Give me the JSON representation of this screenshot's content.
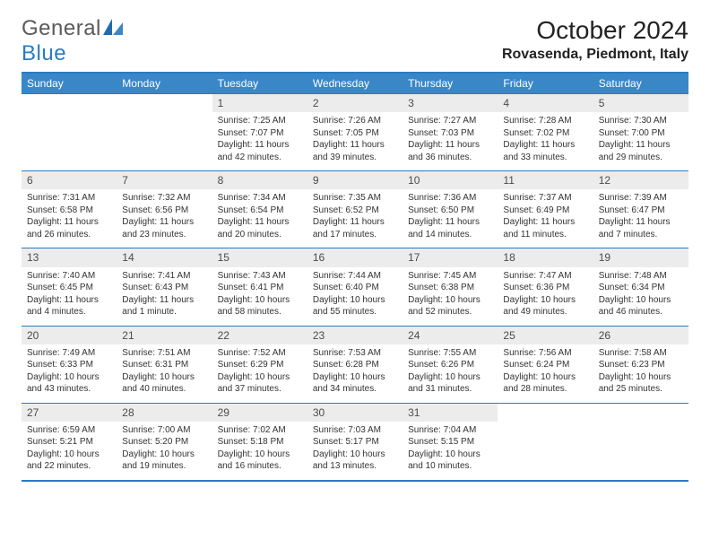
{
  "brand": {
    "word1": "General",
    "word2": "Blue"
  },
  "title": "October 2024",
  "location": "Rovasenda, Piedmont, Italy",
  "colors": {
    "header_bg": "#3a87c8",
    "header_text": "#ffffff",
    "border": "#2a7cc4",
    "daynum_bg": "#ececec",
    "body_text": "#333333",
    "logo_gray": "#5a5a5a",
    "logo_blue": "#2a7cc4"
  },
  "weekdays": [
    "Sunday",
    "Monday",
    "Tuesday",
    "Wednesday",
    "Thursday",
    "Friday",
    "Saturday"
  ],
  "weeks": [
    [
      null,
      null,
      {
        "n": "1",
        "sunrise": "Sunrise: 7:25 AM",
        "sunset": "Sunset: 7:07 PM",
        "daylight": "Daylight: 11 hours and 42 minutes."
      },
      {
        "n": "2",
        "sunrise": "Sunrise: 7:26 AM",
        "sunset": "Sunset: 7:05 PM",
        "daylight": "Daylight: 11 hours and 39 minutes."
      },
      {
        "n": "3",
        "sunrise": "Sunrise: 7:27 AM",
        "sunset": "Sunset: 7:03 PM",
        "daylight": "Daylight: 11 hours and 36 minutes."
      },
      {
        "n": "4",
        "sunrise": "Sunrise: 7:28 AM",
        "sunset": "Sunset: 7:02 PM",
        "daylight": "Daylight: 11 hours and 33 minutes."
      },
      {
        "n": "5",
        "sunrise": "Sunrise: 7:30 AM",
        "sunset": "Sunset: 7:00 PM",
        "daylight": "Daylight: 11 hours and 29 minutes."
      }
    ],
    [
      {
        "n": "6",
        "sunrise": "Sunrise: 7:31 AM",
        "sunset": "Sunset: 6:58 PM",
        "daylight": "Daylight: 11 hours and 26 minutes."
      },
      {
        "n": "7",
        "sunrise": "Sunrise: 7:32 AM",
        "sunset": "Sunset: 6:56 PM",
        "daylight": "Daylight: 11 hours and 23 minutes."
      },
      {
        "n": "8",
        "sunrise": "Sunrise: 7:34 AM",
        "sunset": "Sunset: 6:54 PM",
        "daylight": "Daylight: 11 hours and 20 minutes."
      },
      {
        "n": "9",
        "sunrise": "Sunrise: 7:35 AM",
        "sunset": "Sunset: 6:52 PM",
        "daylight": "Daylight: 11 hours and 17 minutes."
      },
      {
        "n": "10",
        "sunrise": "Sunrise: 7:36 AM",
        "sunset": "Sunset: 6:50 PM",
        "daylight": "Daylight: 11 hours and 14 minutes."
      },
      {
        "n": "11",
        "sunrise": "Sunrise: 7:37 AM",
        "sunset": "Sunset: 6:49 PM",
        "daylight": "Daylight: 11 hours and 11 minutes."
      },
      {
        "n": "12",
        "sunrise": "Sunrise: 7:39 AM",
        "sunset": "Sunset: 6:47 PM",
        "daylight": "Daylight: 11 hours and 7 minutes."
      }
    ],
    [
      {
        "n": "13",
        "sunrise": "Sunrise: 7:40 AM",
        "sunset": "Sunset: 6:45 PM",
        "daylight": "Daylight: 11 hours and 4 minutes."
      },
      {
        "n": "14",
        "sunrise": "Sunrise: 7:41 AM",
        "sunset": "Sunset: 6:43 PM",
        "daylight": "Daylight: 11 hours and 1 minute."
      },
      {
        "n": "15",
        "sunrise": "Sunrise: 7:43 AM",
        "sunset": "Sunset: 6:41 PM",
        "daylight": "Daylight: 10 hours and 58 minutes."
      },
      {
        "n": "16",
        "sunrise": "Sunrise: 7:44 AM",
        "sunset": "Sunset: 6:40 PM",
        "daylight": "Daylight: 10 hours and 55 minutes."
      },
      {
        "n": "17",
        "sunrise": "Sunrise: 7:45 AM",
        "sunset": "Sunset: 6:38 PM",
        "daylight": "Daylight: 10 hours and 52 minutes."
      },
      {
        "n": "18",
        "sunrise": "Sunrise: 7:47 AM",
        "sunset": "Sunset: 6:36 PM",
        "daylight": "Daylight: 10 hours and 49 minutes."
      },
      {
        "n": "19",
        "sunrise": "Sunrise: 7:48 AM",
        "sunset": "Sunset: 6:34 PM",
        "daylight": "Daylight: 10 hours and 46 minutes."
      }
    ],
    [
      {
        "n": "20",
        "sunrise": "Sunrise: 7:49 AM",
        "sunset": "Sunset: 6:33 PM",
        "daylight": "Daylight: 10 hours and 43 minutes."
      },
      {
        "n": "21",
        "sunrise": "Sunrise: 7:51 AM",
        "sunset": "Sunset: 6:31 PM",
        "daylight": "Daylight: 10 hours and 40 minutes."
      },
      {
        "n": "22",
        "sunrise": "Sunrise: 7:52 AM",
        "sunset": "Sunset: 6:29 PM",
        "daylight": "Daylight: 10 hours and 37 minutes."
      },
      {
        "n": "23",
        "sunrise": "Sunrise: 7:53 AM",
        "sunset": "Sunset: 6:28 PM",
        "daylight": "Daylight: 10 hours and 34 minutes."
      },
      {
        "n": "24",
        "sunrise": "Sunrise: 7:55 AM",
        "sunset": "Sunset: 6:26 PM",
        "daylight": "Daylight: 10 hours and 31 minutes."
      },
      {
        "n": "25",
        "sunrise": "Sunrise: 7:56 AM",
        "sunset": "Sunset: 6:24 PM",
        "daylight": "Daylight: 10 hours and 28 minutes."
      },
      {
        "n": "26",
        "sunrise": "Sunrise: 7:58 AM",
        "sunset": "Sunset: 6:23 PM",
        "daylight": "Daylight: 10 hours and 25 minutes."
      }
    ],
    [
      {
        "n": "27",
        "sunrise": "Sunrise: 6:59 AM",
        "sunset": "Sunset: 5:21 PM",
        "daylight": "Daylight: 10 hours and 22 minutes."
      },
      {
        "n": "28",
        "sunrise": "Sunrise: 7:00 AM",
        "sunset": "Sunset: 5:20 PM",
        "daylight": "Daylight: 10 hours and 19 minutes."
      },
      {
        "n": "29",
        "sunrise": "Sunrise: 7:02 AM",
        "sunset": "Sunset: 5:18 PM",
        "daylight": "Daylight: 10 hours and 16 minutes."
      },
      {
        "n": "30",
        "sunrise": "Sunrise: 7:03 AM",
        "sunset": "Sunset: 5:17 PM",
        "daylight": "Daylight: 10 hours and 13 minutes."
      },
      {
        "n": "31",
        "sunrise": "Sunrise: 7:04 AM",
        "sunset": "Sunset: 5:15 PM",
        "daylight": "Daylight: 10 hours and 10 minutes."
      },
      null,
      null
    ]
  ]
}
